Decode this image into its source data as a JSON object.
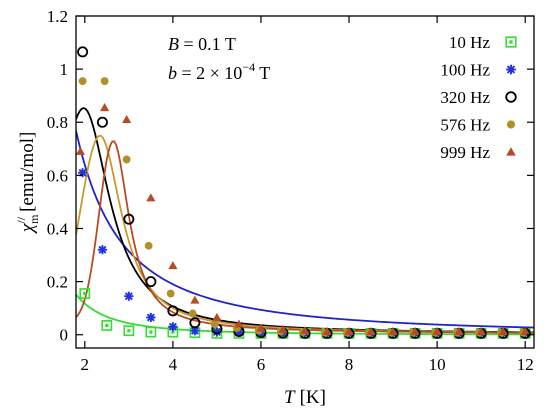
{
  "chart_data": {
    "type": "scatter",
    "xlabel": "T [K]",
    "xlabel_var": "T",
    "xlabel_unit": "[K]",
    "ylabel_var": "χ",
    "ylabel_sub": "m",
    "ylabel_sup": "//",
    "ylabel_unit": "[emu/mol]",
    "xlim": [
      1.8,
      12.2
    ],
    "ylim": [
      -0.05,
      1.2
    ],
    "x_ticks": [
      2,
      4,
      6,
      8,
      10,
      12
    ],
    "y_ticks": [
      0,
      0.2,
      0.4,
      0.6,
      0.8,
      1,
      1.2
    ],
    "x_tick_labels": [
      "2",
      "4",
      "6",
      "8",
      "10",
      "12"
    ],
    "y_tick_labels": [
      "0",
      "0.2",
      "0.4",
      "0.6",
      "0.8",
      "1",
      "1.2"
    ],
    "grid": false,
    "legend_position": "top-right",
    "annotations": {
      "line1": {
        "var": "B",
        "text": " = 0.1 T"
      },
      "line2": {
        "var": "b",
        "text": " = 2 × 10",
        "exp": "−4",
        "unit": " T"
      }
    },
    "series": [
      {
        "name": "10 Hz",
        "color": "#33dd33",
        "marker": "square-open",
        "points": [
          [
            2,
            0.155
          ],
          [
            2.5,
            0.035
          ],
          [
            3,
            0.015
          ],
          [
            3.5,
            0.01
          ],
          [
            4,
            0.01
          ],
          [
            4.5,
            0.008
          ],
          [
            5,
            0.005
          ],
          [
            5.5,
            0.005
          ],
          [
            6,
            0.005
          ],
          [
            6.5,
            0.005
          ],
          [
            7,
            0.005
          ],
          [
            7.5,
            0.005
          ],
          [
            8,
            0.005
          ],
          [
            8.5,
            0.005
          ],
          [
            9,
            0.005
          ],
          [
            9.5,
            0.005
          ],
          [
            10,
            0.005
          ],
          [
            10.5,
            0.005
          ],
          [
            11,
            0.005
          ],
          [
            11.5,
            0.005
          ],
          [
            12,
            0.005
          ]
        ],
        "fit": {
          "A": 0.64,
          "n": 2.45,
          "peakT": null,
          "peakW": null
        }
      },
      {
        "name": "100 Hz",
        "color": "#2233dd",
        "marker": "asterisk",
        "points": [
          [
            1.95,
            0.61
          ],
          [
            2.4,
            0.32
          ],
          [
            3,
            0.145
          ],
          [
            3.5,
            0.065
          ],
          [
            4,
            0.03
          ],
          [
            4.5,
            0.015
          ],
          [
            5,
            0.01
          ],
          [
            5.5,
            0.008
          ],
          [
            6,
            0.005
          ],
          [
            6.5,
            0.005
          ],
          [
            7,
            0.005
          ],
          [
            7.5,
            0.005
          ],
          [
            8,
            0.005
          ],
          [
            8.5,
            0.005
          ],
          [
            9,
            0.005
          ],
          [
            9.5,
            0.005
          ],
          [
            10,
            0.005
          ],
          [
            10.5,
            0.005
          ],
          [
            11,
            0.005
          ],
          [
            11.5,
            0.005
          ],
          [
            12,
            0.005
          ]
        ],
        "fit": {
          "A": 2.15,
          "n": 1.75,
          "peakT": null,
          "peakW": null
        }
      },
      {
        "name": "320 Hz",
        "color": "#000000",
        "marker": "circle-open",
        "points": [
          [
            1.95,
            1.065
          ],
          [
            2.4,
            0.8
          ],
          [
            3,
            0.435
          ],
          [
            3.5,
            0.2
          ],
          [
            4,
            0.09
          ],
          [
            4.5,
            0.045
          ],
          [
            5,
            0.022
          ],
          [
            5.5,
            0.012
          ],
          [
            6,
            0.008
          ],
          [
            6.5,
            0.006
          ],
          [
            7,
            0.005
          ],
          [
            7.5,
            0.005
          ],
          [
            8,
            0.005
          ],
          [
            8.5,
            0.005
          ],
          [
            9,
            0.005
          ],
          [
            9.5,
            0.005
          ],
          [
            10,
            0.005
          ],
          [
            10.5,
            0.005
          ],
          [
            11,
            0.005
          ],
          [
            11.5,
            0.005
          ],
          [
            12,
            0.005
          ]
        ],
        "fit": {
          "A": 0.55,
          "n": 1.0,
          "peakT": 1.98,
          "peakW": 0.95
        }
      },
      {
        "name": "576 Hz",
        "color": "#b0902a",
        "marker": "circle-filled",
        "points": [
          [
            1.95,
            0.955
          ],
          [
            2.45,
            0.955
          ],
          [
            2.95,
            0.66
          ],
          [
            3.45,
            0.335
          ],
          [
            3.95,
            0.155
          ],
          [
            4.45,
            0.08
          ],
          [
            4.95,
            0.04
          ],
          [
            5.45,
            0.025
          ],
          [
            5.95,
            0.015
          ],
          [
            6.45,
            0.012
          ],
          [
            6.95,
            0.01
          ],
          [
            7.45,
            0.008
          ],
          [
            7.95,
            0.008
          ],
          [
            8.45,
            0.008
          ],
          [
            8.95,
            0.008
          ],
          [
            9.45,
            0.008
          ],
          [
            9.95,
            0.008
          ],
          [
            10.45,
            0.008
          ],
          [
            10.95,
            0.008
          ],
          [
            11.45,
            0.008
          ],
          [
            11.95,
            0.008
          ]
        ],
        "fit": {
          "A": 0.58,
          "n": 1.0,
          "peakT": 2.35,
          "peakW": 0.8
        }
      },
      {
        "name": "999 Hz",
        "color": "#b84a25",
        "marker": "triangle-filled",
        "points": [
          [
            1.9,
            0.69
          ],
          [
            2.45,
            0.855
          ],
          [
            2.95,
            0.81
          ],
          [
            3.5,
            0.515
          ],
          [
            4,
            0.26
          ],
          [
            4.5,
            0.13
          ],
          [
            5,
            0.065
          ],
          [
            5.5,
            0.04
          ],
          [
            6,
            0.025
          ],
          [
            6.5,
            0.02
          ],
          [
            7,
            0.015
          ],
          [
            7.5,
            0.012
          ],
          [
            8,
            0.012
          ],
          [
            8.5,
            0.012
          ],
          [
            9,
            0.012
          ],
          [
            9.5,
            0.012
          ],
          [
            10,
            0.012
          ],
          [
            10.5,
            0.012
          ],
          [
            11,
            0.012
          ],
          [
            11.5,
            0.012
          ],
          [
            12,
            0.012
          ]
        ],
        "fit": {
          "A": 0.65,
          "n": 1.0,
          "peakT": 2.65,
          "peakW": 0.58
        }
      }
    ]
  }
}
